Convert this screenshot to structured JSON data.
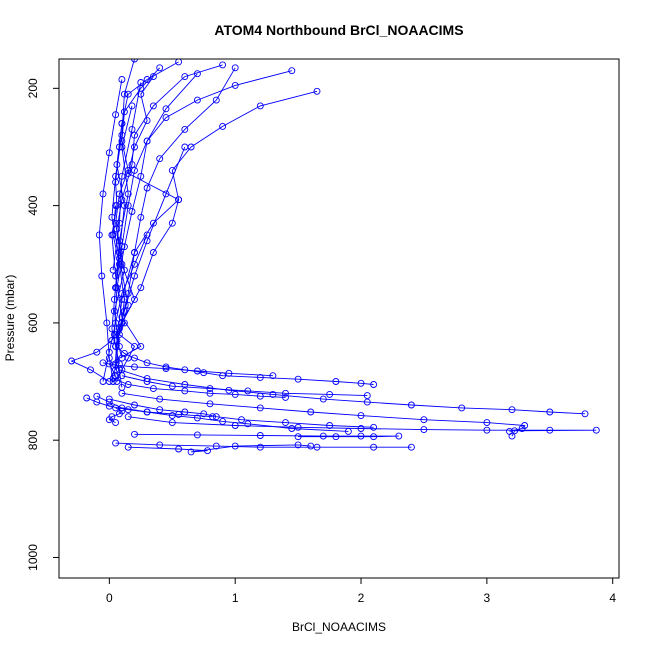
{
  "chart_data": {
    "type": "line",
    "title": "ATOM4 Northbound BrCl_NOAACIMS",
    "xlabel": "BrCl_NOAACIMS",
    "ylabel": "Pressure (mbar)",
    "xlim": [
      -0.4,
      4.05
    ],
    "ylim": [
      1035,
      150
    ],
    "y_reversed": true,
    "xticks": [
      0,
      1,
      2,
      3,
      4
    ],
    "yticks": [
      200,
      400,
      600,
      800,
      1000
    ],
    "grid": false,
    "legend": "none",
    "colors": {
      "series": "#0000ff",
      "axis": "#000000"
    },
    "series": [
      {
        "x": [
          0.55,
          0.3,
          0.15,
          0.1,
          0.08,
          0.05,
          0.06,
          0.02,
          0.05,
          0.1,
          0.25,
          0.0,
          0.05
        ],
        "y": [
          155,
          185,
          210,
          260,
          300,
          360,
          400,
          450,
          520,
          590,
          640,
          670,
          690
        ]
      },
      {
        "x": [
          0.4,
          0.25,
          0.12,
          0.1,
          0.15,
          0.08,
          0.05,
          0.1,
          0.2,
          0.05,
          0.1
        ],
        "y": [
          165,
          200,
          240,
          290,
          340,
          380,
          430,
          500,
          560,
          620,
          660
        ]
      },
      {
        "x": [
          0.9,
          0.6,
          0.35,
          0.2,
          0.18,
          0.1,
          0.06,
          0.12,
          0.04,
          0.08
        ],
        "y": [
          160,
          180,
          230,
          280,
          330,
          390,
          440,
          510,
          580,
          640
        ]
      },
      {
        "x": [
          1.45,
          1.0,
          0.7,
          0.45,
          0.3,
          0.2,
          0.15,
          0.1,
          0.05,
          0.02,
          0.08
        ],
        "y": [
          170,
          195,
          220,
          250,
          290,
          340,
          400,
          470,
          540,
          610,
          670
        ]
      },
      {
        "x": [
          1.65,
          1.2,
          0.9,
          0.65,
          0.5,
          0.55,
          0.35,
          0.2,
          0.1,
          0.06,
          0.04
        ],
        "y": [
          205,
          230,
          265,
          300,
          340,
          390,
          430,
          480,
          560,
          630,
          690
        ]
      },
      {
        "x": [
          1.0,
          0.85,
          0.6,
          0.4,
          0.3,
          0.25,
          0.2,
          0.15,
          0.08,
          0.05
        ],
        "y": [
          165,
          220,
          270,
          320,
          370,
          420,
          480,
          550,
          610,
          680
        ]
      },
      {
        "x": [
          0.1,
          0.05,
          0.0,
          -0.05,
          -0.08,
          -0.06,
          -0.02,
          0.0,
          0.03
        ],
        "y": [
          185,
          245,
          310,
          380,
          450,
          520,
          600,
          660,
          700
        ]
      },
      {
        "x": [
          0.2,
          0.12,
          0.1,
          0.05,
          0.02,
          0.08,
          0.15,
          0.05,
          0.1
        ],
        "y": [
          150,
          210,
          280,
          350,
          420,
          490,
          570,
          640,
          710
        ]
      },
      {
        "x": [
          0.7,
          0.45,
          0.3,
          0.25,
          0.18,
          0.12,
          0.06,
          0.04
        ],
        "y": [
          175,
          235,
          290,
          350,
          410,
          470,
          540,
          620
        ]
      },
      {
        "x": [
          0.35,
          0.25,
          0.3,
          0.2,
          0.15,
          0.55,
          0.5,
          0.35,
          0.25,
          0.1
        ],
        "y": [
          180,
          210,
          255,
          300,
          345,
          390,
          430,
          480,
          540,
          600
        ]
      },
      {
        "x": [
          0.05,
          0.03,
          0.08,
          0.12,
          0.1,
          0.02,
          -0.1,
          -0.3,
          -0.15,
          0.0
        ],
        "y": [
          400,
          450,
          500,
          560,
          600,
          630,
          650,
          665,
          680,
          700
        ]
      },
      {
        "x": [
          0.05,
          0.12,
          0.2,
          0.3,
          0.45,
          0.6,
          0.75,
          0.9,
          1.2,
          1.5,
          1.8,
          2.0,
          2.1
        ],
        "y": [
          640,
          652,
          660,
          668,
          675,
          680,
          685,
          690,
          693,
          696,
          700,
          703,
          705
        ]
      },
      {
        "x": [
          0.08,
          0.3,
          0.6,
          0.95,
          1.3,
          1.7,
          2.05,
          2.4,
          2.8,
          3.2,
          3.5,
          3.78
        ],
        "y": [
          680,
          695,
          705,
          715,
          722,
          730,
          735,
          740,
          745,
          748,
          752,
          755
        ]
      },
      {
        "x": [
          0.1,
          0.4,
          0.8,
          1.2,
          1.6,
          2.0,
          2.5,
          3.0,
          3.3,
          3.28,
          3.18
        ],
        "y": [
          720,
          730,
          738,
          745,
          752,
          758,
          765,
          770,
          775,
          780,
          785
        ]
      },
      {
        "x": [
          0.15,
          0.5,
          1.0,
          1.5,
          2.0,
          2.5,
          3.0,
          3.5,
          3.87,
          3.22,
          3.2
        ],
        "y": [
          760,
          770,
          775,
          778,
          780,
          782,
          783,
          783,
          783,
          784,
          793
        ]
      },
      {
        "x": [
          0.2,
          0.7,
          1.2,
          1.7,
          2.0,
          2.3,
          2.1,
          1.8,
          1.5
        ],
        "y": [
          790,
          791,
          792,
          793,
          793,
          793,
          794,
          794,
          794
        ]
      },
      {
        "x": [
          0.05,
          0.4,
          0.85,
          1.2,
          1.65,
          2.1,
          2.4
        ],
        "y": [
          805,
          808,
          810,
          812,
          812,
          812,
          812
        ]
      },
      {
        "x": [
          0.15,
          0.55,
          0.78,
          0.65,
          1.0,
          1.5,
          1.6
        ],
        "y": [
          812,
          815,
          818,
          820,
          810,
          808,
          810
        ]
      },
      {
        "x": [
          0.1,
          0.3,
          0.5,
          0.8,
          1.1,
          1.4,
          1.75,
          2.05
        ],
        "y": [
          690,
          700,
          708,
          712,
          716,
          720,
          722,
          724
        ]
      },
      {
        "x": [
          0.0,
          0.2,
          0.4,
          0.6,
          0.75,
          0.85,
          1.05,
          1.4,
          1.75,
          2.1
        ],
        "y": [
          730,
          740,
          748,
          752,
          755,
          760,
          765,
          770,
          775,
          778
        ]
      },
      {
        "x": [
          -0.1,
          0.0,
          0.1,
          0.3,
          0.5,
          0.7,
          0.9,
          1.1,
          1.45,
          1.9
        ],
        "y": [
          725,
          735,
          745,
          752,
          758,
          762,
          768,
          772,
          780,
          785
        ]
      },
      {
        "x": [
          0.03,
          0.15,
          0.35,
          0.6,
          0.8,
          1.0,
          1.2,
          1.4
        ],
        "y": [
          695,
          705,
          712,
          716,
          720,
          722,
          725,
          727
        ]
      },
      {
        "x": [
          -0.05,
          0.05,
          0.2,
          0.45,
          0.7,
          0.95,
          1.3
        ],
        "y": [
          668,
          672,
          675,
          678,
          682,
          686,
          690
        ]
      },
      {
        "x": [
          -0.18,
          -0.1,
          0.0,
          0.15,
          0.3,
          0.55,
          0.82
        ],
        "y": [
          728,
          735,
          742,
          748,
          752,
          756,
          760
        ]
      },
      {
        "x": [
          0.05,
          0.1,
          0.08,
          0.02,
          0.0,
          0.05
        ],
        "y": [
          745,
          750,
          755,
          760,
          765,
          770
        ]
      },
      {
        "x": [
          0.12,
          0.08,
          0.2,
          0.15,
          0.1,
          0.06
        ],
        "y": [
          600,
          620,
          640,
          660,
          680,
          700
        ]
      },
      {
        "x": [
          0.3,
          0.2,
          0.1,
          0.05,
          0.0,
          -0.05
        ],
        "y": [
          450,
          500,
          550,
          600,
          650,
          700
        ]
      },
      {
        "x": [
          0.6,
          0.45,
          0.3,
          0.2,
          0.12,
          0.05
        ],
        "y": [
          300,
          380,
          460,
          520,
          580,
          640
        ]
      },
      {
        "x": [
          0.18,
          0.1,
          0.15,
          0.08,
          0.05
        ],
        "y": [
          230,
          300,
          380,
          460,
          540
        ]
      },
      {
        "x": [
          0.1,
          0.06,
          0.12,
          0.08,
          0.04
        ],
        "y": [
          260,
          330,
          400,
          480,
          560
        ]
      },
      {
        "x": [
          0.25,
          0.18,
          0.1,
          0.08,
          0.03
        ],
        "y": [
          190,
          270,
          350,
          430,
          510
        ]
      }
    ]
  }
}
